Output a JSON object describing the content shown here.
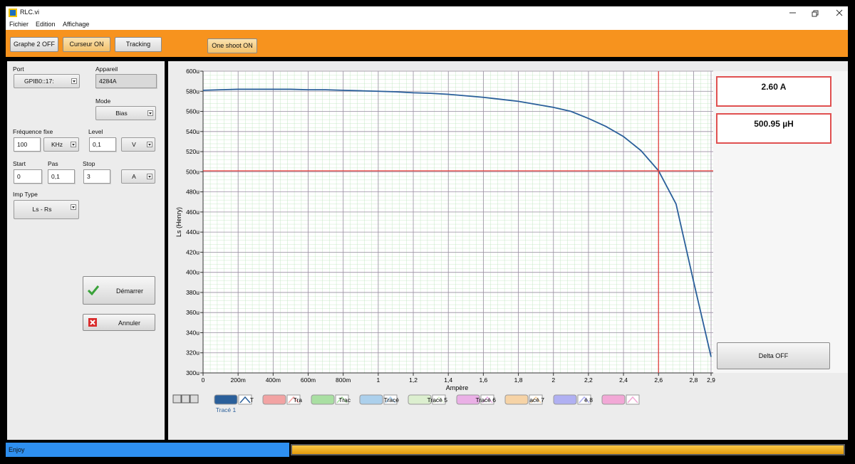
{
  "window": {
    "title": "RLC.vi"
  },
  "menu": [
    "Fichier",
    "Edition",
    "Affichage"
  ],
  "toolbar": [
    "Graphe 2 OFF",
    "Curseur ON",
    "Tracking",
    "One shoot ON"
  ],
  "panel": {
    "port": {
      "label": "Port",
      "value": "GPIB0::17:"
    },
    "appareil": {
      "label": "Appareil",
      "value": "4284A"
    },
    "mode": {
      "label": "Mode",
      "value": "Bias"
    },
    "frequence": {
      "label": "Fréquence fixe",
      "value": "100",
      "unit": "KHz"
    },
    "level": {
      "label": "Level",
      "value": "0,1",
      "unit": "V"
    },
    "start": {
      "label": "Start",
      "value": "0"
    },
    "pas": {
      "label": "Pas",
      "value": "0,1"
    },
    "stop": {
      "label": "Stop",
      "value": "3",
      "unit": "A"
    },
    "imp_type": {
      "label": "Imp Type",
      "value": "Ls - Rs"
    },
    "buttons": [
      "Démarrer",
      "Annuler"
    ]
  },
  "chart_data": {
    "type": "line",
    "x_label": "Ampère",
    "y_label": "Ls (Henry)",
    "x": [
      0,
      0.1,
      0.2,
      0.3,
      0.4,
      0.5,
      0.6,
      0.7,
      0.8,
      0.9,
      1,
      1.1,
      1.2,
      1.3,
      1.4,
      1.5,
      1.6,
      1.7,
      1.8,
      1.9,
      2,
      2.1,
      2.2,
      2.3,
      2.4,
      2.5,
      2.6,
      2.7,
      2.8,
      2.9
    ],
    "series": [
      {
        "name": "Tracé 1",
        "color": "#2a5f9a",
        "values": [
          581,
          581.5,
          582,
          582,
          582,
          582,
          581.5,
          581.5,
          581,
          580.5,
          580,
          579.5,
          578.5,
          578,
          577,
          575.5,
          574,
          572,
          570,
          567,
          564,
          560,
          553,
          545,
          535,
          521,
          501,
          468,
          391,
          316
        ]
      }
    ],
    "xlim": [
      0,
      2.9
    ],
    "ylim": [
      300,
      600
    ],
    "xticks": [
      0,
      {
        "value": 0.2,
        "label": "200m"
      },
      {
        "value": 0.4,
        "label": "400m"
      },
      {
        "value": 0.6,
        "label": "600m"
      },
      {
        "value": 0.8,
        "label": "800m"
      },
      1,
      {
        "value": 1.2,
        "label": "1,2"
      },
      {
        "value": 1.4,
        "label": "1,4"
      },
      {
        "value": 1.6,
        "label": "1,6"
      },
      {
        "value": 1.8,
        "label": "1,8"
      },
      2,
      {
        "value": 2.2,
        "label": "2,2"
      },
      {
        "value": 2.4,
        "label": "2,4"
      },
      {
        "value": 2.6,
        "label": "2,6"
      },
      {
        "value": 2.8,
        "label": "2,8"
      },
      {
        "value": 2.9,
        "label": "2,9"
      }
    ],
    "yticks": [
      {
        "value": 300,
        "label": "300u"
      },
      {
        "value": 320,
        "label": "320u"
      },
      {
        "value": 340,
        "label": "340u"
      },
      {
        "value": 360,
        "label": "360u"
      },
      {
        "value": 380,
        "label": "380u"
      },
      {
        "value": 400,
        "label": "400u"
      },
      {
        "value": 420,
        "label": "420u"
      },
      {
        "value": 440,
        "label": "440u"
      },
      {
        "value": 460,
        "label": "460u"
      },
      {
        "value": 480,
        "label": "480u"
      },
      {
        "value": 500,
        "label": "500u"
      },
      {
        "value": 520,
        "label": "520u"
      },
      {
        "value": 540,
        "label": "540u"
      },
      {
        "value": 560,
        "label": "560u"
      },
      {
        "value": 580,
        "label": "580u"
      },
      {
        "value": 600,
        "label": "600u"
      }
    ],
    "grid": true,
    "grid_color": "#9d8fa5",
    "cursor": {
      "x": 2.6,
      "y": 500.95,
      "color": "#e53935"
    },
    "other_plots": [
      {
        "label": "T",
        "color": "#f2a3a3"
      },
      {
        "label": "Tra",
        "color": "#a9dfa2"
      },
      {
        "label": "Trac",
        "color": "#acd0ec"
      },
      {
        "label": "Tracé",
        "color": "#dcefcf"
      },
      {
        "label": "Tracé 5",
        "color": "#eab0e6"
      },
      {
        "label": "Tracé 6",
        "color": "#f6d3a6"
      },
      {
        "label": "acé 7",
        "color": "#b0b0f2"
      },
      {
        "label": "é 8",
        "color": "#f2a8d6"
      }
    ]
  },
  "readouts": {
    "current": "2.60 A",
    "inductance": "500.95 µH",
    "delta_button": "Delta OFF"
  },
  "status": {
    "text": "Enjoy"
  }
}
